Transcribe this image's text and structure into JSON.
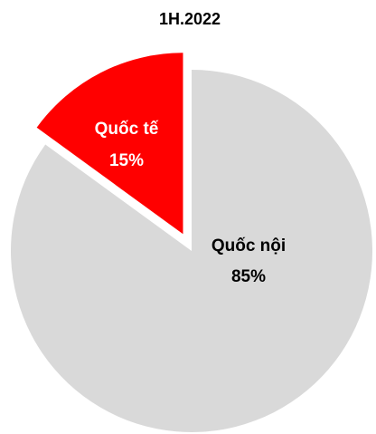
{
  "chart_data": {
    "type": "pie",
    "title": "1H.2022",
    "categories": [
      "Quốc tế",
      "Quốc nội"
    ],
    "values": [
      15,
      85
    ],
    "value_labels": [
      "15%",
      "85%"
    ],
    "colors": [
      "#ff0000",
      "#d9d9d9"
    ]
  }
}
